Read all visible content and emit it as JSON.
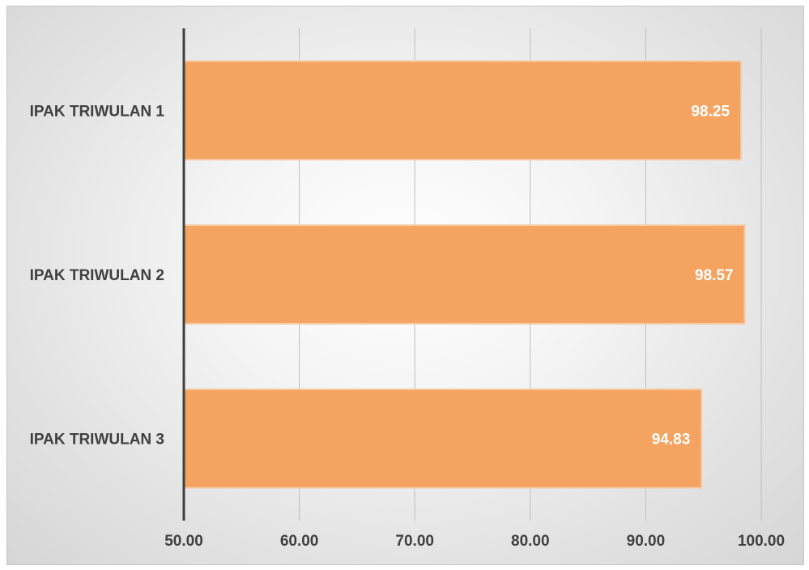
{
  "chart_data": {
    "type": "bar",
    "orientation": "horizontal",
    "categories": [
      "IPAK TRIWULAN 1",
      "IPAK TRIWULAN 2",
      "IPAK TRIWULAN 3"
    ],
    "values": [
      98.25,
      98.57,
      94.83
    ],
    "value_labels": [
      "98.25",
      "98.57",
      "94.83"
    ],
    "xlim": [
      50,
      100
    ],
    "xticks": [
      "50.00",
      "60.00",
      "70.00",
      "80.00",
      "90.00",
      "100.00"
    ],
    "title": "",
    "xlabel": "",
    "ylabel": "",
    "grid": true,
    "legend": "none",
    "bar_color": "#f4a460",
    "bar_border_color": "#f7c9a1"
  }
}
